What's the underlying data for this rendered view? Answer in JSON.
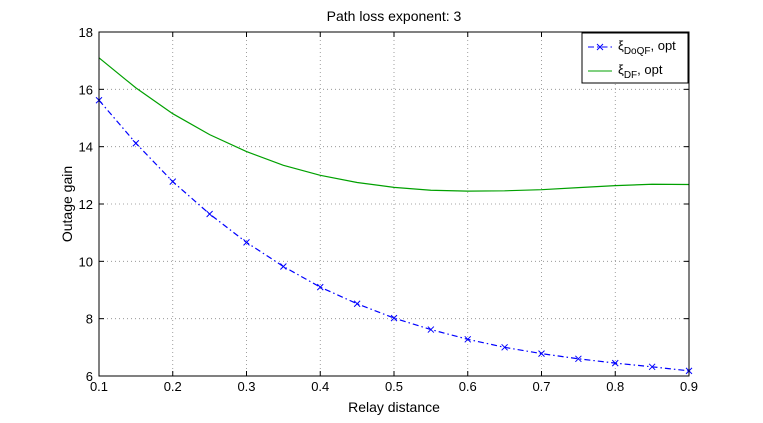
{
  "chart_data": {
    "type": "line",
    "title": "Path loss exponent: 3",
    "xlabel": "Relay distance",
    "ylabel": "Outage gain",
    "xlim": [
      0.1,
      0.9
    ],
    "ylim": [
      6,
      18
    ],
    "xticks": [
      "0.1",
      "0.2",
      "0.3",
      "0.4",
      "0.5",
      "0.6",
      "0.7",
      "0.8",
      "0.9"
    ],
    "yticks": [
      "6",
      "8",
      "10",
      "12",
      "14",
      "16",
      "18"
    ],
    "grid": true,
    "legend_position": "top-right",
    "series": [
      {
        "name": "ξDoQF, opt",
        "legend_symbol": "ξ",
        "legend_subscript": "DoQF",
        "legend_suffix": ", opt",
        "color": "#0000ff",
        "line_style": "dash-dot",
        "marker": "x",
        "x": [
          0.1,
          0.15,
          0.2,
          0.25,
          0.3,
          0.35,
          0.4,
          0.45,
          0.5,
          0.55,
          0.6,
          0.65,
          0.7,
          0.75,
          0.8,
          0.85,
          0.9
        ],
        "values": [
          15.62,
          14.12,
          12.78,
          11.65,
          10.66,
          9.82,
          9.1,
          8.52,
          8.02,
          7.62,
          7.28,
          7.0,
          6.78,
          6.6,
          6.45,
          6.32,
          6.18
        ]
      },
      {
        "name": "ξDF, opt",
        "legend_symbol": "ξ",
        "legend_subscript": "DF",
        "legend_suffix": ", opt",
        "color": "#00a000",
        "line_style": "solid",
        "marker": "none",
        "x": [
          0.1,
          0.15,
          0.2,
          0.25,
          0.3,
          0.35,
          0.4,
          0.45,
          0.5,
          0.55,
          0.6,
          0.65,
          0.7,
          0.75,
          0.8,
          0.85,
          0.9
        ],
        "values": [
          17.1,
          16.05,
          15.15,
          14.42,
          13.83,
          13.35,
          13.0,
          12.75,
          12.58,
          12.48,
          12.45,
          12.46,
          12.5,
          12.57,
          12.64,
          12.69,
          12.68
        ]
      }
    ]
  }
}
